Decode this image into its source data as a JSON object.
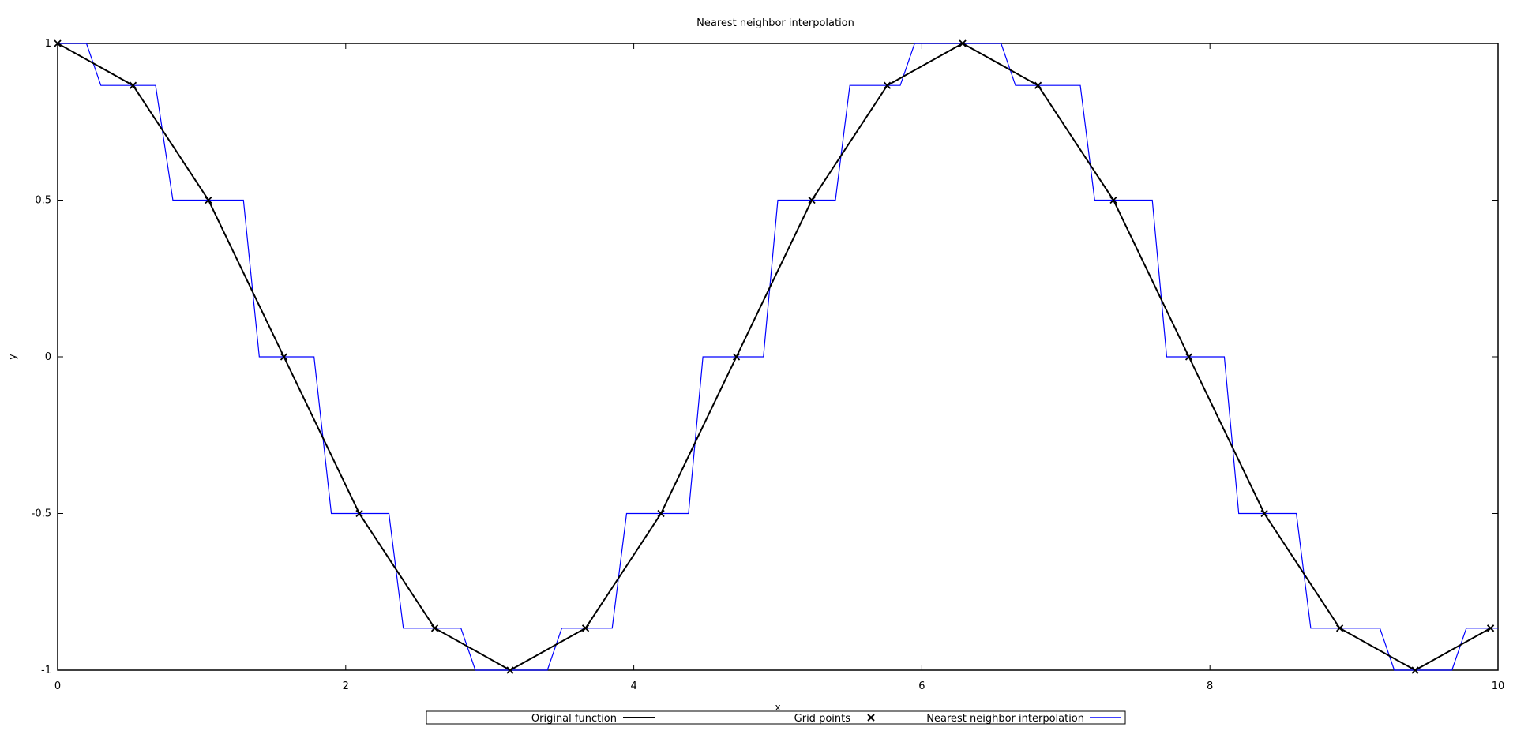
{
  "chart_data": {
    "type": "line",
    "title": "Nearest neighbor interpolation",
    "xlabel": "x",
    "ylabel": "y",
    "xlim": [
      0,
      10
    ],
    "ylim": [
      -1,
      1
    ],
    "xticks": [
      "0",
      "2",
      "4",
      "6",
      "8",
      "10"
    ],
    "yticks": [
      "1",
      "0.5",
      "0",
      "-0.5",
      "-1"
    ],
    "grid": false,
    "legend_position": "bottom-center",
    "colors": {
      "original": "#000000",
      "grid_points": "#000000",
      "nearest": "#0000ff"
    },
    "series": [
      {
        "name": "Original function",
        "type": "line",
        "x": [
          0,
          0.5236,
          1.0472,
          1.5708,
          2.0944,
          2.618,
          3.1416,
          3.6652,
          4.1888,
          4.7124,
          5.236,
          5.7596,
          6.2832,
          6.8068,
          7.3304,
          7.854,
          8.3776,
          8.9012,
          9.4248,
          9.9484
        ],
        "values": [
          1,
          0.866,
          0.5,
          0,
          -0.5,
          -0.866,
          -1,
          -0.866,
          -0.5,
          0,
          0.5,
          0.866,
          1,
          0.866,
          0.5,
          0,
          -0.5,
          -0.866,
          -1,
          -0.866
        ]
      },
      {
        "name": "Grid points",
        "type": "scatter",
        "marker": "x",
        "x": [
          0,
          0.5236,
          1.0472,
          1.5708,
          2.0944,
          2.618,
          3.1416,
          3.6652,
          4.1888,
          4.7124,
          5.236,
          5.7596,
          6.2832,
          6.8068,
          7.3304,
          7.854,
          8.3776,
          8.9012,
          9.4248,
          9.9484
        ],
        "values": [
          1,
          0.866,
          0.5,
          0,
          -0.5,
          -0.866,
          -1,
          -0.866,
          -0.5,
          0,
          0.5,
          0.866,
          1,
          0.866,
          0.5,
          0,
          -0.5,
          -0.866,
          -1,
          -0.866
        ]
      },
      {
        "name": "Nearest neighbor interpolation",
        "type": "step",
        "x": [
          0,
          0.2,
          0.3,
          0.68,
          0.8,
          1.29,
          1.4,
          1.78,
          1.9,
          2.3,
          2.4,
          2.8,
          2.9,
          3.4,
          3.5,
          3.85,
          3.95,
          4.38,
          4.48,
          4.9,
          5.0,
          5.4,
          5.5,
          5.85,
          5.95,
          6.55,
          6.65,
          7.1,
          7.2,
          7.6,
          7.7,
          8.1,
          8.2,
          8.6,
          8.7,
          9.18,
          9.28,
          9.68,
          9.78,
          10
        ],
        "values": [
          1,
          1,
          0.866,
          0.866,
          0.5,
          0.5,
          0,
          0,
          -0.5,
          -0.5,
          -0.866,
          -0.866,
          -1,
          -1,
          -0.866,
          -0.866,
          -0.5,
          -0.5,
          0,
          0,
          0.5,
          0.5,
          0.866,
          0.866,
          1,
          1,
          0.866,
          0.866,
          0.5,
          0.5,
          0,
          0,
          -0.5,
          -0.5,
          -0.866,
          -0.866,
          -1,
          -1,
          -0.866,
          -0.866
        ]
      }
    ]
  }
}
